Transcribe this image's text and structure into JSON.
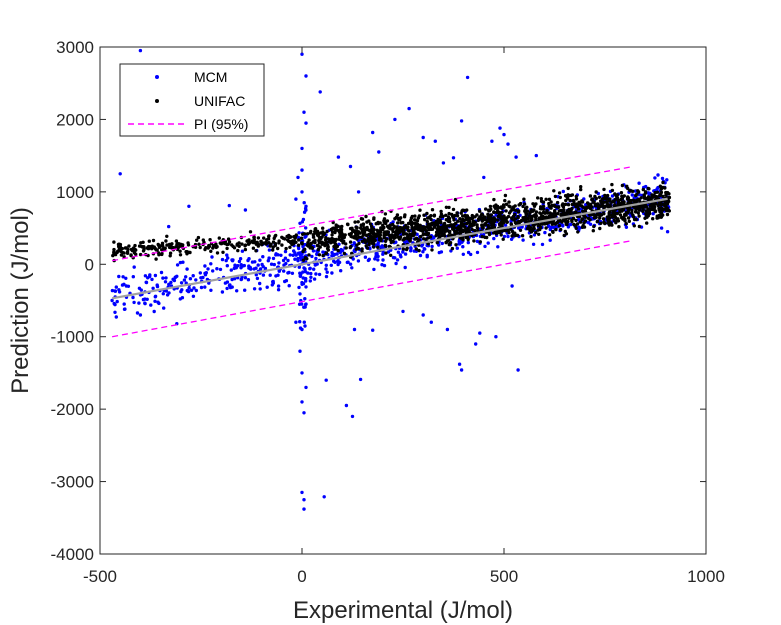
{
  "chart_data": {
    "type": "scatter",
    "title": "",
    "xlabel": "Experimental (J/mol)",
    "ylabel": "Prediction (J/mol)",
    "xlim": [
      -500,
      1000
    ],
    "ylim": [
      -4000,
      3000
    ],
    "xticks": [
      -500,
      0,
      500,
      1000
    ],
    "yticks": [
      -4000,
      -3000,
      -2000,
      -1000,
      0,
      1000,
      2000,
      3000
    ],
    "xtick_labels": [
      "-500",
      "0",
      "500",
      "1000"
    ],
    "ytick_labels": [
      "-4000",
      "-3000",
      "-2000",
      "-1000",
      "0",
      "1000",
      "2000",
      "3000"
    ],
    "grid": false,
    "legend": {
      "placement": "top-left",
      "entries": [
        {
          "label": "MCM",
          "color": "#0000ff",
          "marker": "dot"
        },
        {
          "label": "UNIFAC",
          "color": "#000000",
          "marker": "dot"
        },
        {
          "label": "PI (95%)",
          "color": "#ff00ff",
          "marker": "dashed-line"
        }
      ]
    },
    "fit_line": {
      "color": "#a0a0a0",
      "x": [
        -470,
        905
      ],
      "y": [
        -470,
        905
      ]
    },
    "pi_upper": {
      "color": "#ff00ff",
      "x": [
        -470,
        820
      ],
      "y": [
        50,
        1350
      ]
    },
    "pi_lower": {
      "color": "#ff00ff",
      "x": [
        -470,
        820
      ],
      "y": [
        -1000,
        330
      ]
    },
    "series": [
      {
        "name": "MCM",
        "color": "#0000ff",
        "outliers": [
          [
            -400,
            2950
          ],
          [
            -450,
            1250
          ],
          [
            -330,
            520
          ],
          [
            -280,
            800
          ],
          [
            -180,
            810
          ],
          [
            -140,
            750
          ],
          [
            0,
            2900
          ],
          [
            10,
            2600
          ],
          [
            5,
            2100
          ],
          [
            10,
            1950
          ],
          [
            45,
            2380
          ],
          [
            0,
            1600
          ],
          [
            0,
            1300
          ],
          [
            -10,
            1200
          ],
          [
            0,
            1000
          ],
          [
            -15,
            900
          ],
          [
            10,
            800
          ],
          [
            90,
            1480
          ],
          [
            120,
            1350
          ],
          [
            140,
            1000
          ],
          [
            175,
            1820
          ],
          [
            190,
            1550
          ],
          [
            230,
            2000
          ],
          [
            265,
            2150
          ],
          [
            300,
            1750
          ],
          [
            330,
            1700
          ],
          [
            350,
            1400
          ],
          [
            375,
            1470
          ],
          [
            395,
            1980
          ],
          [
            410,
            2580
          ],
          [
            450,
            1200
          ],
          [
            470,
            1700
          ],
          [
            490,
            1880
          ],
          [
            500,
            1790
          ],
          [
            510,
            1660
          ],
          [
            530,
            1480
          ],
          [
            580,
            1500
          ],
          [
            0,
            -3150
          ],
          [
            5,
            -3250
          ],
          [
            5,
            -3380
          ],
          [
            55,
            -3210
          ],
          [
            5,
            -2050
          ],
          [
            0,
            -1900
          ],
          [
            10,
            -1700
          ],
          [
            0,
            -1500
          ],
          [
            -5,
            -1200
          ],
          [
            0,
            -900
          ],
          [
            -15,
            -800
          ],
          [
            10,
            -550
          ],
          [
            60,
            -1600
          ],
          [
            110,
            -1950
          ],
          [
            125,
            -2100
          ],
          [
            145,
            -1590
          ],
          [
            130,
            -900
          ],
          [
            175,
            -910
          ],
          [
            250,
            -650
          ],
          [
            300,
            -700
          ],
          [
            320,
            -800
          ],
          [
            360,
            -900
          ],
          [
            390,
            -1380
          ],
          [
            395,
            -1460
          ],
          [
            430,
            -1100
          ],
          [
            440,
            -950
          ],
          [
            480,
            -1000
          ],
          [
            520,
            -300
          ],
          [
            535,
            -1460
          ],
          [
            -400,
            -700
          ],
          [
            -310,
            -820
          ],
          [
            -440,
            -550
          ],
          [
            -470,
            -500
          ],
          [
            890,
            500
          ],
          [
            905,
            450
          ]
        ],
        "trend": {
          "slope": 1.0,
          "intercept": 30,
          "spread": 140,
          "x_range": [
            -470,
            910
          ]
        }
      },
      {
        "name": "UNIFAC",
        "color": "#000000",
        "trend_left": {
          "x_range": [
            -470,
            0
          ],
          "y_start": 180,
          "y_end": 340,
          "spread": 55
        },
        "trend_right": {
          "x_range": [
            0,
            910
          ],
          "slope": 0.62,
          "intercept": 300,
          "spread": 120
        }
      }
    ]
  }
}
